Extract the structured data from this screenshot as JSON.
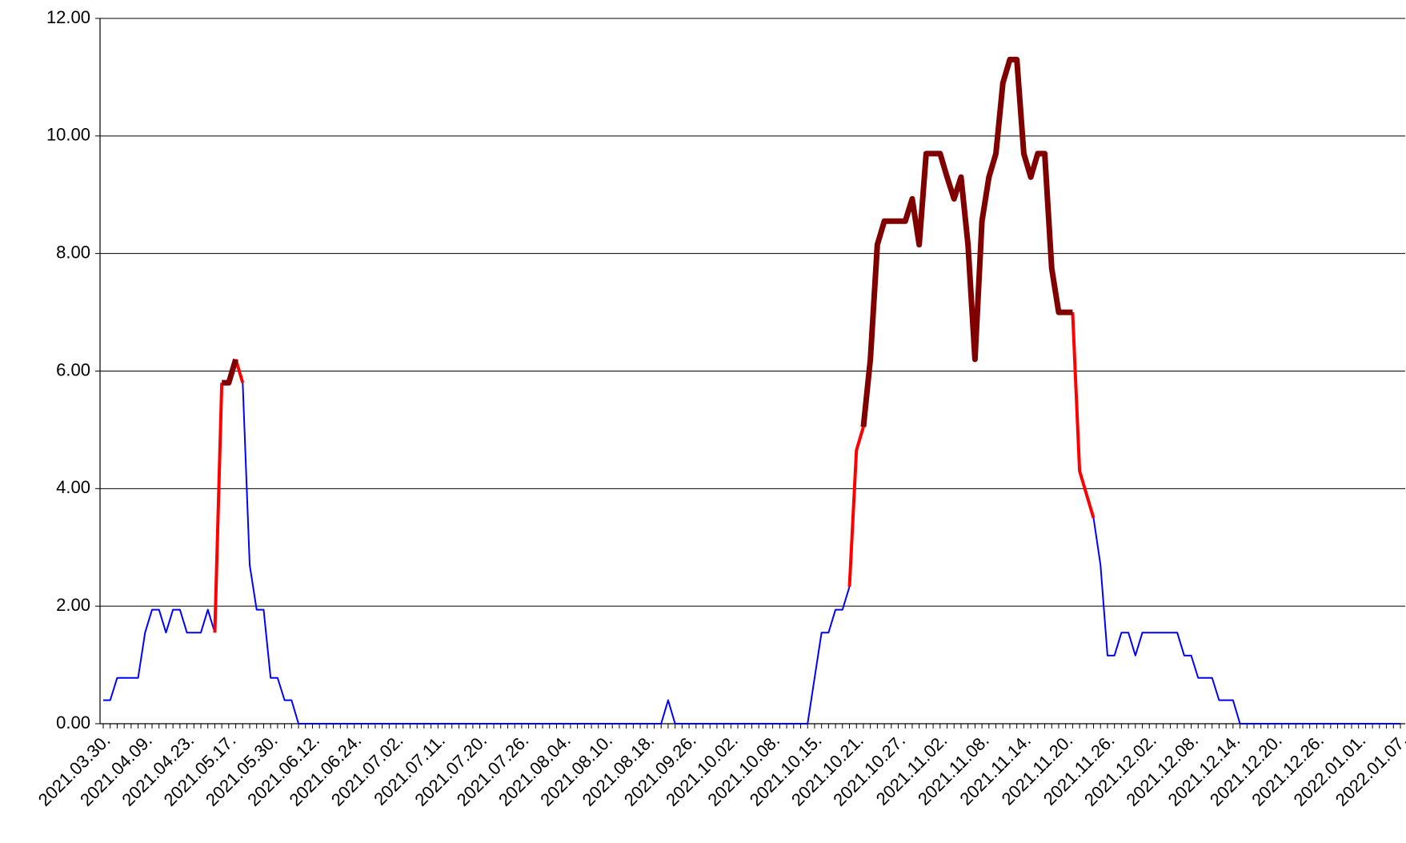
{
  "chart_data": {
    "type": "line",
    "categories": [
      "2021.03.30.",
      null,
      null,
      null,
      null,
      null,
      "2021.04.09.",
      null,
      null,
      null,
      null,
      null,
      "2021.04.23.",
      null,
      null,
      null,
      null,
      null,
      "2021.05.17.",
      null,
      null,
      null,
      null,
      null,
      "2021.05.30.",
      null,
      null,
      null,
      null,
      null,
      "2021.06.12.",
      null,
      null,
      null,
      null,
      null,
      "2021.06.24.",
      null,
      null,
      null,
      null,
      null,
      "2021.07.02.",
      null,
      null,
      null,
      null,
      null,
      "2021.07.11.",
      null,
      null,
      null,
      null,
      null,
      "2021.07.20.",
      null,
      null,
      null,
      null,
      null,
      "2021.07.26.",
      null,
      null,
      null,
      null,
      null,
      "2021.08.04.",
      null,
      null,
      null,
      null,
      null,
      "2021.08.10.",
      null,
      null,
      null,
      null,
      null,
      "2021.08.18.",
      null,
      null,
      null,
      null,
      null,
      "2021.09.26.",
      null,
      null,
      null,
      null,
      null,
      "2021.10.02.",
      null,
      null,
      null,
      null,
      null,
      "2021.10.08.",
      null,
      null,
      null,
      null,
      null,
      "2021.10.15.",
      null,
      null,
      null,
      null,
      null,
      "2021.10.21.",
      null,
      null,
      null,
      null,
      null,
      "2021.10.27.",
      null,
      null,
      null,
      null,
      null,
      "2021.11.02.",
      null,
      null,
      null,
      null,
      null,
      "2021.11.08.",
      null,
      null,
      null,
      null,
      null,
      "2021.11.14.",
      null,
      null,
      null,
      null,
      null,
      "2021.11.20.",
      null,
      null,
      null,
      null,
      null,
      "2021.11.26.",
      null,
      null,
      null,
      null,
      null,
      "2021.12.02.",
      null,
      null,
      null,
      null,
      null,
      "2021.12.08.",
      null,
      null,
      null,
      null,
      null,
      "2021.12.14.",
      null,
      null,
      null,
      null,
      null,
      "2021.12.20.",
      null,
      null,
      null,
      null,
      null,
      "2021.12.26.",
      null,
      null,
      null,
      null,
      null,
      "2022.01.01.",
      null,
      null,
      null,
      null,
      null,
      "2022.01.07."
    ],
    "series": [
      {
        "color": "#0000ff",
        "width": 2,
        "values": [
          0.4,
          0.4,
          0.78,
          0.78,
          0.78,
          0.78,
          1.55,
          1.94,
          1.94,
          1.55,
          1.94,
          1.94,
          1.55,
          1.55,
          1.55,
          1.94,
          1.55,
          null,
          null,
          null,
          5.8,
          2.7,
          1.94,
          1.94,
          0.78,
          0.78,
          0.4,
          0.4,
          0,
          0,
          0,
          0,
          0,
          0,
          0,
          0,
          0,
          0,
          0,
          0,
          0,
          0,
          0,
          0,
          0,
          0,
          0,
          0,
          0,
          0,
          0,
          0,
          0,
          0,
          0,
          0,
          0,
          0,
          0,
          0,
          0,
          0,
          0,
          0,
          0,
          0,
          0,
          0,
          0,
          0,
          0,
          0,
          0,
          0,
          0,
          0,
          0,
          0,
          0,
          0,
          0,
          0.4,
          0,
          0,
          0,
          0,
          0,
          0,
          0,
          0,
          0,
          0,
          0,
          0,
          0,
          0,
          0,
          0,
          0,
          0,
          0,
          0,
          0.78,
          1.55,
          1.55,
          1.94,
          1.94,
          2.33,
          null,
          null,
          null,
          null,
          null,
          null,
          null,
          null,
          null,
          null,
          null,
          null,
          null,
          null,
          null,
          null,
          null,
          null,
          null,
          null,
          null,
          null,
          null,
          null,
          null,
          null,
          null,
          null,
          null,
          null,
          null,
          null,
          null,
          null,
          3.5,
          2.7,
          1.16,
          1.16,
          1.55,
          1.55,
          1.16,
          1.55,
          1.55,
          1.55,
          1.55,
          1.55,
          1.55,
          1.16,
          1.16,
          0.78,
          0.78,
          0.78,
          0.4,
          0.4,
          0.4,
          0,
          0,
          0,
          0,
          0,
          0,
          0,
          0,
          0,
          0,
          0,
          0,
          0,
          0,
          0,
          0,
          0,
          0,
          0,
          0,
          0,
          0,
          0,
          0
        ]
      },
      {
        "color": "#ff0000",
        "width": 4,
        "values": [
          null,
          null,
          null,
          null,
          null,
          null,
          null,
          null,
          null,
          null,
          null,
          null,
          null,
          null,
          null,
          null,
          1.55,
          5.8,
          null,
          6.2,
          5.8,
          null,
          null,
          null,
          null,
          null,
          null,
          null,
          null,
          null,
          null,
          null,
          null,
          null,
          null,
          null,
          null,
          null,
          null,
          null,
          null,
          null,
          null,
          null,
          null,
          null,
          null,
          null,
          null,
          null,
          null,
          null,
          null,
          null,
          null,
          null,
          null,
          null,
          null,
          null,
          null,
          null,
          null,
          null,
          null,
          null,
          null,
          null,
          null,
          null,
          null,
          null,
          null,
          null,
          null,
          null,
          null,
          null,
          null,
          null,
          null,
          null,
          null,
          null,
          null,
          null,
          null,
          null,
          null,
          null,
          null,
          null,
          null,
          null,
          null,
          null,
          null,
          null,
          null,
          null,
          null,
          null,
          null,
          null,
          null,
          null,
          null,
          2.33,
          4.65,
          5.05,
          null,
          null,
          null,
          null,
          null,
          null,
          null,
          null,
          null,
          null,
          null,
          null,
          null,
          null,
          null,
          null,
          null,
          null,
          null,
          null,
          null,
          null,
          null,
          null,
          null,
          null,
          null,
          null,
          null,
          7.0,
          4.3,
          3.9,
          3.5,
          null,
          null,
          null,
          null,
          null,
          null,
          null,
          null,
          null,
          null,
          null,
          null,
          null,
          null,
          null,
          null,
          null,
          null,
          null,
          null,
          null,
          null,
          null,
          null,
          null,
          null,
          null,
          null,
          null,
          null,
          null,
          null,
          null,
          null,
          null,
          null,
          null,
          null,
          null,
          null,
          null,
          null,
          null,
          null
        ]
      },
      {
        "color": "#800000",
        "width": 7,
        "values": [
          null,
          null,
          null,
          null,
          null,
          null,
          null,
          null,
          null,
          null,
          null,
          null,
          null,
          null,
          null,
          null,
          null,
          5.8,
          5.8,
          6.2,
          null,
          null,
          null,
          null,
          null,
          null,
          null,
          null,
          null,
          null,
          null,
          null,
          null,
          null,
          null,
          null,
          null,
          null,
          null,
          null,
          null,
          null,
          null,
          null,
          null,
          null,
          null,
          null,
          null,
          null,
          null,
          null,
          null,
          null,
          null,
          null,
          null,
          null,
          null,
          null,
          null,
          null,
          null,
          null,
          null,
          null,
          null,
          null,
          null,
          null,
          null,
          null,
          null,
          null,
          null,
          null,
          null,
          null,
          null,
          null,
          null,
          null,
          null,
          null,
          null,
          null,
          null,
          null,
          null,
          null,
          null,
          null,
          null,
          null,
          null,
          null,
          null,
          null,
          null,
          null,
          null,
          null,
          null,
          null,
          null,
          null,
          null,
          null,
          null,
          5.05,
          6.2,
          8.15,
          8.55,
          8.55,
          8.55,
          8.55,
          8.93,
          8.15,
          9.7,
          9.7,
          9.7,
          9.3,
          8.93,
          9.3,
          8.15,
          6.2,
          8.55,
          9.3,
          9.7,
          10.9,
          11.3,
          11.3,
          9.7,
          9.3,
          9.7,
          9.7,
          7.75,
          7.0,
          7.0,
          7.0,
          null,
          null,
          null,
          null,
          null,
          null,
          null,
          null,
          null,
          null,
          null,
          null,
          null,
          null,
          null,
          null,
          null,
          null,
          null,
          null,
          null,
          null,
          null,
          null,
          null,
          null,
          null,
          null,
          null,
          null,
          null,
          null,
          null,
          null,
          null,
          null,
          null,
          null,
          null,
          null,
          null,
          null,
          null,
          null,
          null,
          null,
          null
        ]
      }
    ],
    "ylim": [
      0,
      12
    ],
    "yticks": [
      {
        "value": 0,
        "label": "0.00"
      },
      {
        "value": 2,
        "label": "2.00"
      },
      {
        "value": 4,
        "label": "4.00"
      },
      {
        "value": 6,
        "label": "6.00"
      },
      {
        "value": 8,
        "label": "8.00"
      },
      {
        "value": 10,
        "label": "10.00"
      },
      {
        "value": 12,
        "label": "12.00"
      }
    ],
    "grid": true
  }
}
